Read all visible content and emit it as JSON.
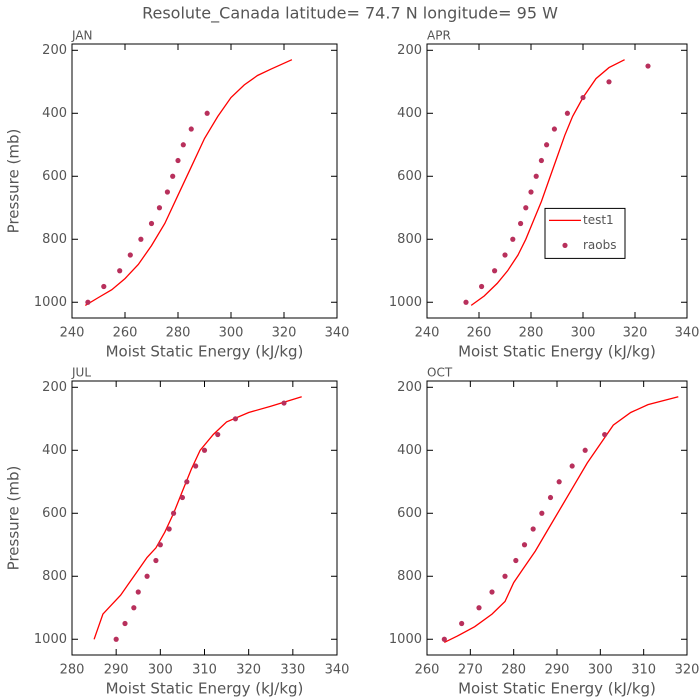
{
  "title": "Resolute_Canada  latitude= 74.7 N longitude= 95 W",
  "chart_data": [
    {
      "type": "line",
      "title": "JAN",
      "xlabel": "Moist Static Energy (kJ/kg)",
      "ylabel": "Pressure (mb)",
      "xlim": [
        240,
        340
      ],
      "xticks": [
        240,
        260,
        280,
        300,
        320,
        340
      ],
      "ylim": [
        1050,
        180
      ],
      "yticks": [
        200,
        400,
        600,
        800,
        1000
      ],
      "legend": false,
      "series": [
        {
          "mode": "line",
          "color": "#ff0000",
          "x": [
            245,
            250,
            255,
            260,
            265,
            270,
            275,
            280,
            285,
            290,
            295,
            300,
            305,
            310,
            315,
            323
          ],
          "values": [
            1010,
            985,
            960,
            925,
            880,
            820,
            750,
            660,
            570,
            480,
            410,
            350,
            310,
            280,
            260,
            230
          ]
        },
        {
          "mode": "markers",
          "color": "#b8305c",
          "x": [
            246,
            252,
            258,
            262,
            266,
            270,
            273,
            276,
            278,
            280,
            282,
            285,
            291
          ],
          "values": [
            1000,
            950,
            900,
            850,
            800,
            750,
            700,
            650,
            600,
            550,
            500,
            450,
            400
          ]
        }
      ]
    },
    {
      "type": "line",
      "title": "APR",
      "xlabel": "Moist Static Energy (kJ/kg)",
      "xlim": [
        240,
        340
      ],
      "xticks": [
        240,
        260,
        280,
        300,
        320,
        340
      ],
      "ylim": [
        1050,
        180
      ],
      "yticks": [
        200,
        400,
        600,
        800,
        1000
      ],
      "legend": "center-right",
      "series": [
        {
          "name": "test1",
          "mode": "line",
          "color": "#ff0000",
          "x": [
            257,
            262,
            267,
            271,
            275,
            278,
            281,
            284,
            287,
            290,
            293,
            296,
            300,
            305,
            310,
            316
          ],
          "values": [
            1010,
            980,
            940,
            900,
            850,
            800,
            740,
            680,
            610,
            540,
            470,
            410,
            350,
            290,
            255,
            230
          ]
        },
        {
          "name": "raobs",
          "mode": "markers",
          "color": "#b8305c",
          "x": [
            255,
            261,
            266,
            270,
            273,
            276,
            278,
            280,
            282,
            284,
            286,
            289,
            294,
            300,
            310,
            325
          ],
          "values": [
            1000,
            950,
            900,
            850,
            800,
            750,
            700,
            650,
            600,
            550,
            500,
            450,
            400,
            350,
            300,
            250
          ]
        }
      ]
    },
    {
      "type": "line",
      "title": "JUL",
      "xlabel": "Moist Static Energy (kJ/kg)",
      "ylabel": "Pressure (mb)",
      "xlim": [
        280,
        340
      ],
      "xticks": [
        280,
        290,
        300,
        310,
        320,
        330,
        340
      ],
      "ylim": [
        1050,
        180
      ],
      "yticks": [
        200,
        400,
        600,
        800,
        1000
      ],
      "legend": false,
      "series": [
        {
          "mode": "line",
          "color": "#ff0000",
          "x": [
            285,
            286,
            287,
            289,
            291,
            293,
            295,
            297,
            299,
            301,
            303,
            305,
            307,
            309,
            312,
            315,
            320,
            325,
            332
          ],
          "values": [
            1000,
            960,
            920,
            890,
            860,
            820,
            780,
            740,
            710,
            660,
            600,
            530,
            460,
            400,
            350,
            310,
            280,
            260,
            230
          ]
        },
        {
          "mode": "markers",
          "color": "#b8305c",
          "x": [
            290,
            292,
            294,
            295,
            297,
            299,
            300,
            302,
            303,
            305,
            306,
            308,
            310,
            313,
            317,
            328
          ],
          "values": [
            1000,
            950,
            900,
            850,
            800,
            750,
            700,
            650,
            600,
            550,
            500,
            450,
            400,
            350,
            300,
            250
          ]
        }
      ]
    },
    {
      "type": "line",
      "title": "OCT",
      "xlabel": "Moist Static Energy (kJ/kg)",
      "xlim": [
        260,
        320
      ],
      "xticks": [
        260,
        270,
        280,
        290,
        300,
        310,
        320
      ],
      "ylim": [
        1050,
        180
      ],
      "yticks": [
        200,
        400,
        600,
        800,
        1000
      ],
      "legend": false,
      "series": [
        {
          "mode": "line",
          "color": "#ff0000",
          "x": [
            264,
            267,
            271,
            275,
            278,
            280,
            282,
            285,
            288,
            291,
            294,
            297,
            300,
            303,
            307,
            311,
            318
          ],
          "values": [
            1010,
            990,
            960,
            920,
            880,
            820,
            780,
            720,
            650,
            580,
            510,
            440,
            380,
            320,
            280,
            255,
            230
          ]
        },
        {
          "mode": "markers",
          "color": "#b8305c",
          "x": [
            264,
            268,
            272,
            275,
            278,
            280.5,
            282.5,
            284.5,
            286.5,
            288.5,
            290.5,
            293.5,
            296.5,
            301
          ],
          "values": [
            1000,
            950,
            900,
            850,
            800,
            750,
            700,
            650,
            600,
            550,
            500,
            450,
            400,
            350
          ]
        }
      ]
    }
  ]
}
